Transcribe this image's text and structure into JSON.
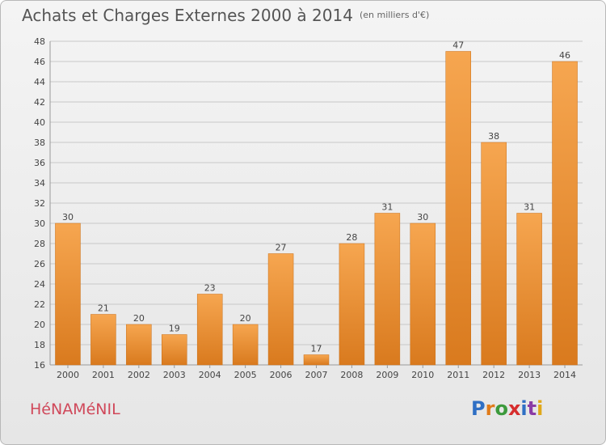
{
  "header": {
    "title": "Achats et Charges Externes 2000 à 2014",
    "unit": "(en milliers d'€)"
  },
  "footer": {
    "commune": "HéNAMéNIL",
    "logo": "Proxiti",
    "logo_letters": [
      "P",
      "r",
      "o",
      "x",
      "i",
      "t",
      "i"
    ],
    "logo_colors": [
      "#2f6fc4",
      "#e07b1a",
      "#3c9a3c",
      "#d62d2d",
      "#2f6fc4",
      "#8b3ca6",
      "#e0a81a"
    ]
  },
  "colors": {
    "bar_top": "#f6a650",
    "bar_bottom": "#d97a1e",
    "grid": "#c8c8c8",
    "title": "#555555",
    "commune": "#d0485a"
  },
  "chart_data": {
    "type": "bar",
    "title": "Achats et Charges Externes 2000 à 2014",
    "subtitle": "(en milliers d'€)",
    "xlabel": "",
    "ylabel": "",
    "ylim": [
      16,
      48
    ],
    "yticks": [
      16,
      18,
      20,
      22,
      24,
      26,
      28,
      30,
      32,
      34,
      36,
      38,
      40,
      42,
      44,
      46,
      48
    ],
    "grid": true,
    "categories": [
      "2000",
      "2001",
      "2002",
      "2003",
      "2004",
      "2005",
      "2006",
      "2007",
      "2008",
      "2009",
      "2010",
      "2011",
      "2012",
      "2013",
      "2014"
    ],
    "values": [
      30,
      21,
      20,
      19,
      23,
      20,
      27,
      17,
      28,
      31,
      30,
      47,
      38,
      31,
      46
    ]
  }
}
